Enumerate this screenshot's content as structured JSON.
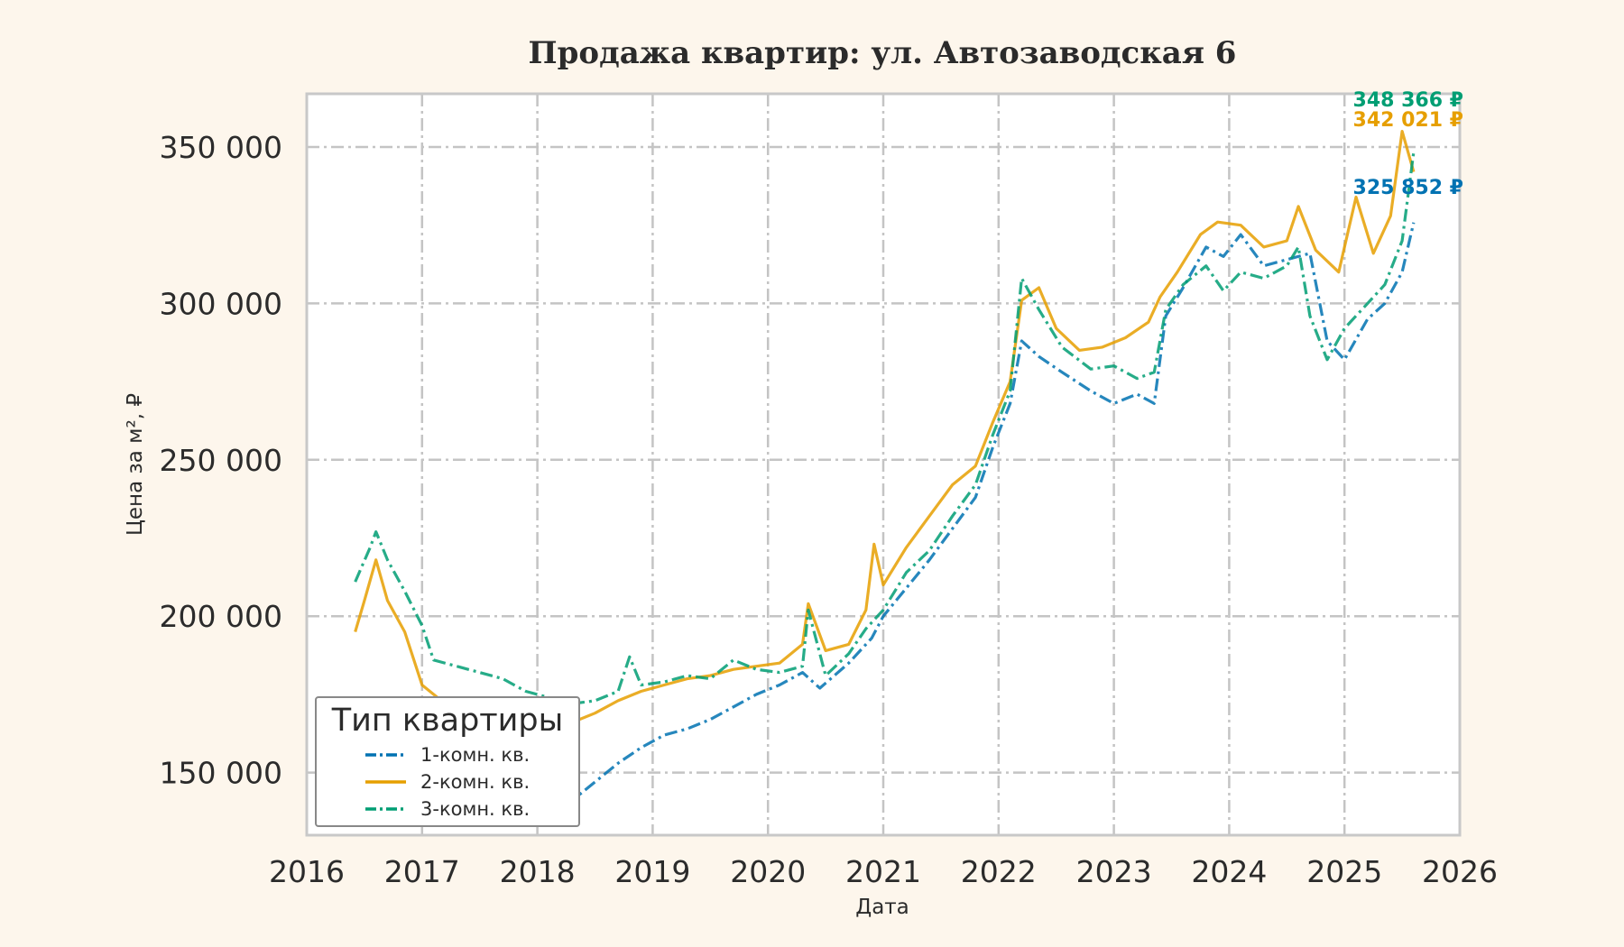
{
  "chart_data": {
    "type": "line",
    "title": "Продажа квартир: ул. Автозаводская 6",
    "xlabel": "Дата",
    "ylabel": "Цена за м², ₽",
    "xlim": [
      2016,
      2026
    ],
    "ylim": [
      130000,
      367000
    ],
    "x_ticks": [
      "2016",
      "2017",
      "2018",
      "2019",
      "2020",
      "2021",
      "2022",
      "2023",
      "2024",
      "2025",
      "2026"
    ],
    "y_ticks": [
      {
        "value": 150000,
        "label": "150 000"
      },
      {
        "value": 200000,
        "label": "200 000"
      },
      {
        "value": 250000,
        "label": "250 000"
      },
      {
        "value": 300000,
        "label": "300 000"
      },
      {
        "value": 350000,
        "label": "350 000"
      }
    ],
    "grid": true,
    "legend": {
      "title": "Тип квартиры",
      "placement": "lower-left"
    },
    "series": [
      {
        "name": "1-комн. кв.",
        "color": "#0072b2",
        "dash": "dash-dot",
        "end_label": "325 852 ₽",
        "points": [
          [
            2016.42,
            162000
          ],
          [
            2016.6,
            160000
          ],
          [
            2016.8,
            158000
          ],
          [
            2017.0,
            156000
          ],
          [
            2017.3,
            152000
          ],
          [
            2017.6,
            149000
          ],
          [
            2017.9,
            146000
          ],
          [
            2018.1,
            143000
          ],
          [
            2018.3,
            141000
          ],
          [
            2018.5,
            147000
          ],
          [
            2018.7,
            153000
          ],
          [
            2018.9,
            158000
          ],
          [
            2019.1,
            162000
          ],
          [
            2019.3,
            164000
          ],
          [
            2019.5,
            167000
          ],
          [
            2019.7,
            171000
          ],
          [
            2019.9,
            175000
          ],
          [
            2020.1,
            178000
          ],
          [
            2020.3,
            182000
          ],
          [
            2020.45,
            177000
          ],
          [
            2020.7,
            185000
          ],
          [
            2020.9,
            193000
          ],
          [
            2021.0,
            200000
          ],
          [
            2021.2,
            209000
          ],
          [
            2021.4,
            218000
          ],
          [
            2021.6,
            228000
          ],
          [
            2021.8,
            238000
          ],
          [
            2021.95,
            254000
          ],
          [
            2022.1,
            268000
          ],
          [
            2022.2,
            288000
          ],
          [
            2022.35,
            283000
          ],
          [
            2022.55,
            278000
          ],
          [
            2022.8,
            272000
          ],
          [
            2023.0,
            268000
          ],
          [
            2023.2,
            271000
          ],
          [
            2023.35,
            268000
          ],
          [
            2023.45,
            296000
          ],
          [
            2023.6,
            305000
          ],
          [
            2023.8,
            318000
          ],
          [
            2023.95,
            315000
          ],
          [
            2024.1,
            322000
          ],
          [
            2024.3,
            312000
          ],
          [
            2024.5,
            314000
          ],
          [
            2024.7,
            316000
          ],
          [
            2024.85,
            288000
          ],
          [
            2025.0,
            282000
          ],
          [
            2025.2,
            295000
          ],
          [
            2025.35,
            300000
          ],
          [
            2025.5,
            310000
          ],
          [
            2025.6,
            325852
          ]
        ]
      },
      {
        "name": "2-комн. кв.",
        "color": "#e69f00",
        "dash": "solid",
        "end_label": "342 021 ₽",
        "points": [
          [
            2016.42,
            195000
          ],
          [
            2016.5,
            205000
          ],
          [
            2016.6,
            218000
          ],
          [
            2016.7,
            205000
          ],
          [
            2016.85,
            195000
          ],
          [
            2017.0,
            178000
          ],
          [
            2017.2,
            172000
          ],
          [
            2017.4,
            168000
          ],
          [
            2017.6,
            166000
          ],
          [
            2017.9,
            165000
          ],
          [
            2018.1,
            163000
          ],
          [
            2018.3,
            166000
          ],
          [
            2018.5,
            169000
          ],
          [
            2018.7,
            173000
          ],
          [
            2018.9,
            176000
          ],
          [
            2019.1,
            178000
          ],
          [
            2019.3,
            180000
          ],
          [
            2019.5,
            181000
          ],
          [
            2019.7,
            183000
          ],
          [
            2019.9,
            184000
          ],
          [
            2020.1,
            185000
          ],
          [
            2020.3,
            191000
          ],
          [
            2020.35,
            204000
          ],
          [
            2020.5,
            189000
          ],
          [
            2020.7,
            191000
          ],
          [
            2020.85,
            202000
          ],
          [
            2020.92,
            223000
          ],
          [
            2021.0,
            210000
          ],
          [
            2021.2,
            222000
          ],
          [
            2021.4,
            232000
          ],
          [
            2021.6,
            242000
          ],
          [
            2021.8,
            248000
          ],
          [
            2021.95,
            262000
          ],
          [
            2022.1,
            275000
          ],
          [
            2022.2,
            301000
          ],
          [
            2022.35,
            305000
          ],
          [
            2022.5,
            292000
          ],
          [
            2022.7,
            285000
          ],
          [
            2022.9,
            286000
          ],
          [
            2023.1,
            289000
          ],
          [
            2023.3,
            294000
          ],
          [
            2023.4,
            302000
          ],
          [
            2023.55,
            310000
          ],
          [
            2023.75,
            322000
          ],
          [
            2023.9,
            326000
          ],
          [
            2024.1,
            325000
          ],
          [
            2024.3,
            318000
          ],
          [
            2024.5,
            320000
          ],
          [
            2024.6,
            331000
          ],
          [
            2024.75,
            317000
          ],
          [
            2024.95,
            310000
          ],
          [
            2025.1,
            334000
          ],
          [
            2025.25,
            316000
          ],
          [
            2025.4,
            328000
          ],
          [
            2025.5,
            355000
          ],
          [
            2025.6,
            342021
          ]
        ]
      },
      {
        "name": "3-комн. кв.",
        "color": "#009e73",
        "dash": "dash-dot",
        "end_label": "348 366 ₽",
        "points": [
          [
            2016.42,
            211000
          ],
          [
            2016.55,
            222000
          ],
          [
            2016.6,
            227000
          ],
          [
            2016.7,
            218000
          ],
          [
            2016.85,
            208000
          ],
          [
            2017.0,
            197000
          ],
          [
            2017.1,
            186000
          ],
          [
            2017.3,
            184000
          ],
          [
            2017.5,
            182000
          ],
          [
            2017.7,
            180000
          ],
          [
            2017.9,
            176000
          ],
          [
            2018.1,
            174000
          ],
          [
            2018.3,
            172000
          ],
          [
            2018.5,
            173000
          ],
          [
            2018.7,
            176000
          ],
          [
            2018.8,
            187000
          ],
          [
            2018.9,
            178000
          ],
          [
            2019.1,
            179000
          ],
          [
            2019.3,
            181000
          ],
          [
            2019.5,
            180000
          ],
          [
            2019.7,
            186000
          ],
          [
            2019.9,
            183000
          ],
          [
            2020.1,
            182000
          ],
          [
            2020.3,
            184000
          ],
          [
            2020.35,
            202000
          ],
          [
            2020.5,
            181000
          ],
          [
            2020.7,
            188000
          ],
          [
            2020.85,
            196000
          ],
          [
            2021.0,
            202000
          ],
          [
            2021.2,
            214000
          ],
          [
            2021.4,
            221000
          ],
          [
            2021.6,
            232000
          ],
          [
            2021.8,
            242000
          ],
          [
            2021.95,
            258000
          ],
          [
            2022.1,
            272000
          ],
          [
            2022.2,
            308000
          ],
          [
            2022.35,
            298000
          ],
          [
            2022.55,
            286000
          ],
          [
            2022.8,
            279000
          ],
          [
            2023.0,
            280000
          ],
          [
            2023.2,
            276000
          ],
          [
            2023.35,
            278000
          ],
          [
            2023.45,
            298000
          ],
          [
            2023.6,
            306000
          ],
          [
            2023.8,
            312000
          ],
          [
            2023.95,
            304000
          ],
          [
            2024.1,
            310000
          ],
          [
            2024.3,
            308000
          ],
          [
            2024.5,
            312000
          ],
          [
            2024.6,
            318000
          ],
          [
            2024.7,
            296000
          ],
          [
            2024.85,
            282000
          ],
          [
            2025.0,
            292000
          ],
          [
            2025.2,
            300000
          ],
          [
            2025.35,
            306000
          ],
          [
            2025.5,
            320000
          ],
          [
            2025.6,
            348366
          ]
        ]
      }
    ]
  }
}
